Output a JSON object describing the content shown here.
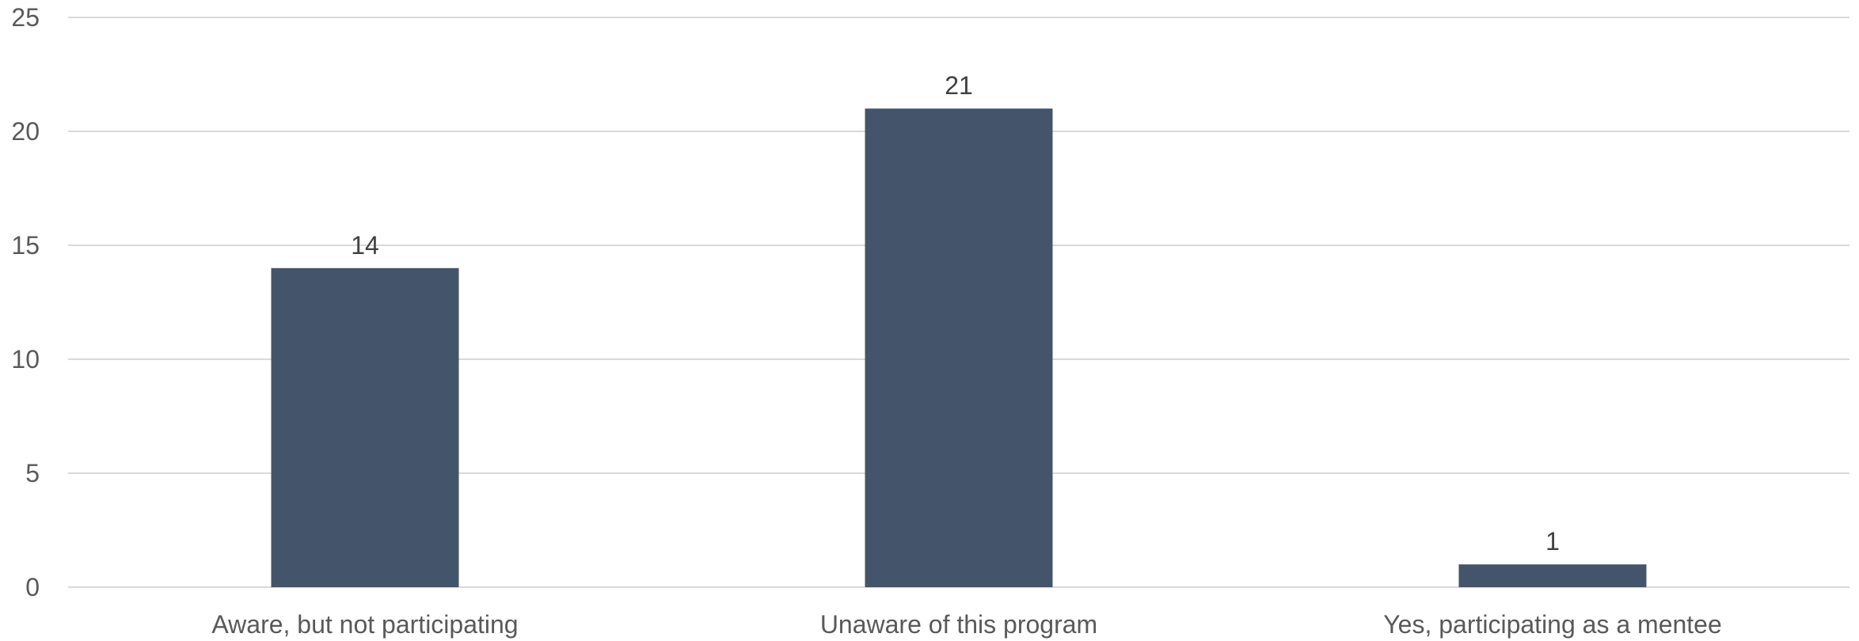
{
  "chart_data": {
    "type": "bar",
    "title": "",
    "xlabel": "",
    "ylabel": "",
    "categories": [
      "Aware, but not participating",
      "Unaware of this program",
      "Yes, participating as a mentee"
    ],
    "values": [
      14,
      21,
      1
    ],
    "data_labels": [
      "14",
      "21",
      "1"
    ],
    "ylim": [
      0,
      25
    ],
    "yticks": [
      0,
      5,
      10,
      15,
      20,
      25
    ],
    "ytick_labels": [
      "0",
      "5",
      "10",
      "15",
      "20",
      "25"
    ],
    "grid": true,
    "legend": "none",
    "bar_color": "#44546a"
  }
}
